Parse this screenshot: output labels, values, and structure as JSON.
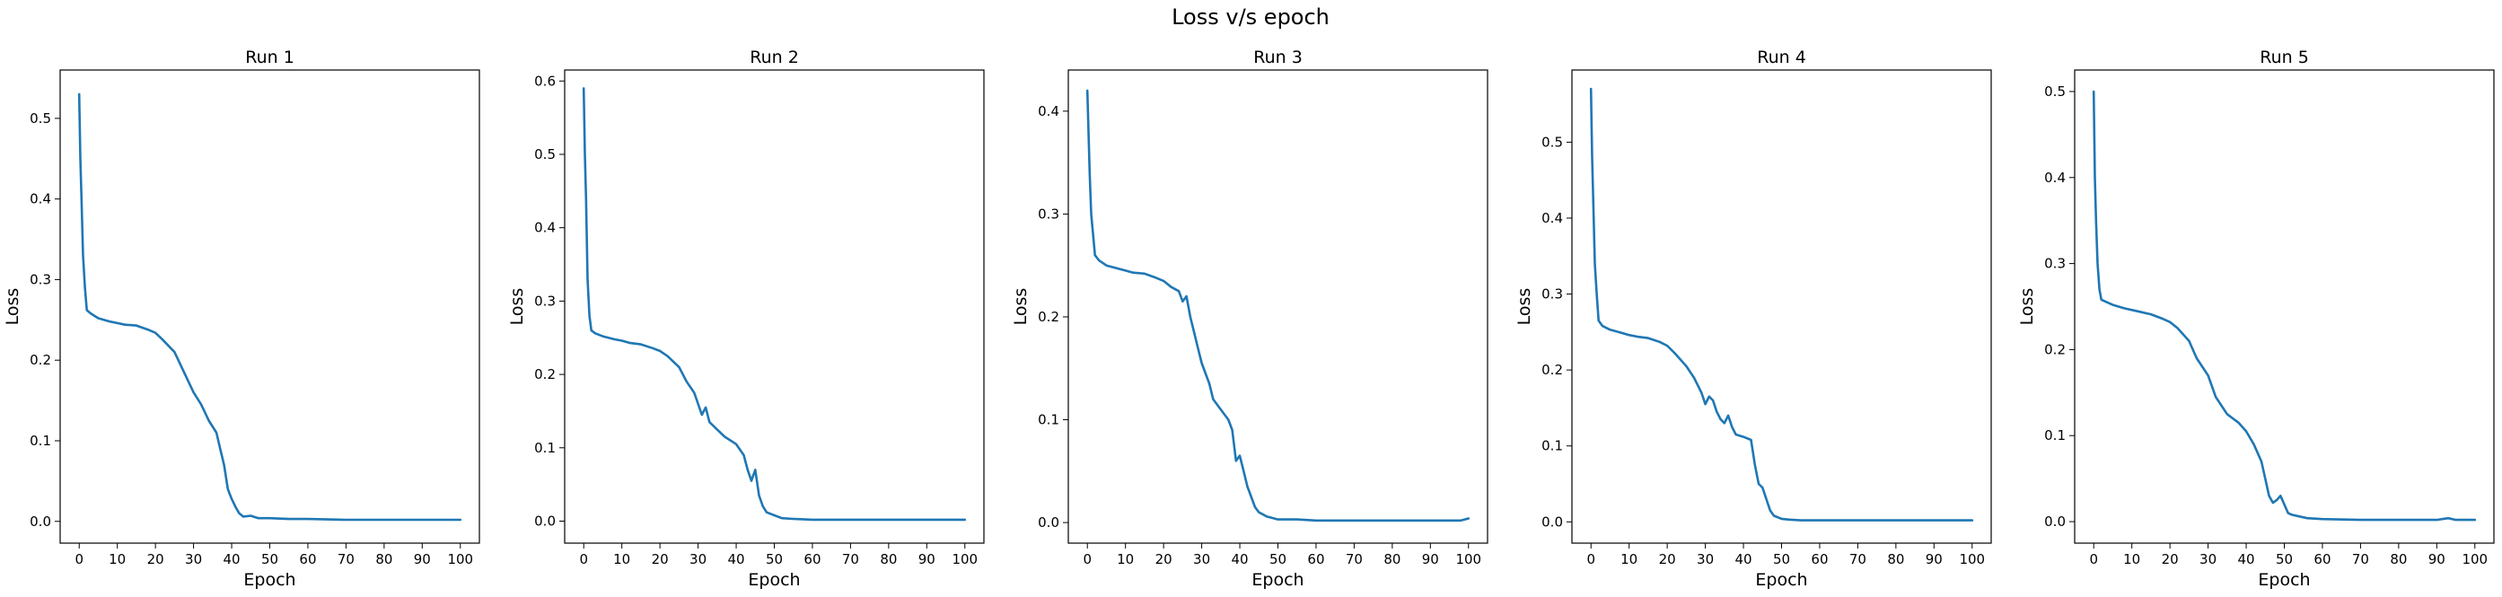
{
  "figure": {
    "title": "Loss v/s epoch",
    "line_color": "#1f77b4"
  },
  "chart_data": [
    {
      "type": "line",
      "title": "Run 1",
      "xlabel": "Epoch",
      "ylabel": "Loss",
      "xticks": [
        0,
        10,
        20,
        30,
        40,
        50,
        60,
        70,
        80,
        90,
        100
      ],
      "yticks": [
        0.0,
        0.1,
        0.2,
        0.3,
        0.4,
        0.5
      ],
      "ytick_labels": [
        "0.0",
        "0.1",
        "0.2",
        "0.3",
        "0.4",
        "0.5"
      ],
      "xlim": [
        -5,
        105
      ],
      "ylim": [
        -0.027,
        0.56
      ],
      "series": [
        {
          "x": [
            0,
            0.3,
            0.6,
            1,
            1.5,
            2,
            3,
            5,
            8,
            10,
            12,
            15,
            18,
            20,
            22,
            25,
            27,
            30,
            32,
            34,
            36,
            37,
            38,
            39,
            40,
            41,
            42,
            43,
            45,
            47,
            50,
            55,
            60,
            70,
            80,
            90,
            100
          ],
          "y": [
            0.53,
            0.45,
            0.4,
            0.33,
            0.29,
            0.262,
            0.258,
            0.252,
            0.248,
            0.246,
            0.244,
            0.243,
            0.238,
            0.234,
            0.225,
            0.21,
            0.19,
            0.16,
            0.145,
            0.125,
            0.11,
            0.09,
            0.07,
            0.04,
            0.028,
            0.018,
            0.01,
            0.006,
            0.007,
            0.004,
            0.004,
            0.003,
            0.003,
            0.002,
            0.002,
            0.002,
            0.002
          ]
        }
      ]
    },
    {
      "type": "line",
      "title": "Run 2",
      "xlabel": "Epoch",
      "ylabel": "Loss",
      "xticks": [
        0,
        10,
        20,
        30,
        40,
        50,
        60,
        70,
        80,
        90,
        100
      ],
      "yticks": [
        0.0,
        0.1,
        0.2,
        0.3,
        0.4,
        0.5,
        0.6
      ],
      "ytick_labels": [
        "0.0",
        "0.1",
        "0.2",
        "0.3",
        "0.4",
        "0.5",
        "0.6"
      ],
      "xlim": [
        -5,
        105
      ],
      "ylim": [
        -0.03,
        0.615
      ],
      "series": [
        {
          "x": [
            0,
            0.3,
            0.6,
            1,
            1.5,
            2,
            3,
            5,
            8,
            10,
            12,
            15,
            18,
            20,
            22,
            25,
            27,
            29,
            31,
            32,
            33,
            35,
            37,
            40,
            42,
            43,
            44,
            45,
            46,
            47,
            48,
            50,
            52,
            55,
            60,
            70,
            80,
            90,
            100
          ],
          "y": [
            0.59,
            0.5,
            0.44,
            0.33,
            0.28,
            0.26,
            0.256,
            0.252,
            0.248,
            0.246,
            0.243,
            0.241,
            0.236,
            0.232,
            0.225,
            0.21,
            0.19,
            0.175,
            0.145,
            0.155,
            0.135,
            0.125,
            0.115,
            0.105,
            0.09,
            0.07,
            0.055,
            0.07,
            0.035,
            0.02,
            0.012,
            0.008,
            0.004,
            0.003,
            0.002,
            0.002,
            0.002,
            0.002,
            0.002
          ]
        }
      ]
    },
    {
      "type": "line",
      "title": "Run 3",
      "xlabel": "Epoch",
      "ylabel": "Loss",
      "xticks": [
        0,
        10,
        20,
        30,
        40,
        50,
        60,
        70,
        80,
        90,
        100
      ],
      "yticks": [
        0.0,
        0.1,
        0.2,
        0.3,
        0.4
      ],
      "ytick_labels": [
        "0.0",
        "0.1",
        "0.2",
        "0.3",
        "0.4"
      ],
      "xlim": [
        -5,
        105
      ],
      "ylim": [
        -0.02,
        0.44
      ],
      "series": [
        {
          "x": [
            0,
            0.3,
            0.6,
            1,
            1.5,
            2,
            3,
            5,
            8,
            10,
            12,
            15,
            18,
            20,
            22,
            24,
            25,
            26,
            27,
            28,
            29,
            30,
            32,
            33,
            35,
            37,
            38,
            39,
            40,
            41,
            42,
            44,
            45,
            47,
            50,
            55,
            60,
            70,
            80,
            90,
            98,
            100
          ],
          "y": [
            0.42,
            0.38,
            0.34,
            0.3,
            0.28,
            0.26,
            0.255,
            0.25,
            0.247,
            0.245,
            0.243,
            0.242,
            0.238,
            0.235,
            0.229,
            0.225,
            0.215,
            0.22,
            0.2,
            0.185,
            0.17,
            0.155,
            0.135,
            0.12,
            0.11,
            0.1,
            0.09,
            0.06,
            0.065,
            0.05,
            0.035,
            0.015,
            0.01,
            0.006,
            0.003,
            0.003,
            0.002,
            0.002,
            0.002,
            0.002,
            0.002,
            0.004
          ]
        }
      ]
    },
    {
      "type": "line",
      "title": "Run 4",
      "xlabel": "Epoch",
      "ylabel": "Loss",
      "xticks": [
        0,
        10,
        20,
        30,
        40,
        50,
        60,
        70,
        80,
        90,
        100
      ],
      "yticks": [
        0.0,
        0.1,
        0.2,
        0.3,
        0.4,
        0.5
      ],
      "ytick_labels": [
        "0.0",
        "0.1",
        "0.2",
        "0.3",
        "0.4",
        "0.5"
      ],
      "xlim": [
        -5,
        105
      ],
      "ylim": [
        -0.028,
        0.595
      ],
      "series": [
        {
          "x": [
            0,
            0.3,
            0.6,
            1,
            1.5,
            2,
            3,
            5,
            8,
            10,
            12,
            15,
            18,
            20,
            22,
            25,
            27,
            29,
            30,
            31,
            32,
            33,
            34,
            35,
            36,
            37,
            38,
            40,
            42,
            43,
            44,
            45,
            46,
            47,
            48,
            50,
            52,
            55,
            60,
            70,
            80,
            90,
            100
          ],
          "y": [
            0.57,
            0.48,
            0.42,
            0.34,
            0.3,
            0.265,
            0.258,
            0.253,
            0.249,
            0.246,
            0.244,
            0.242,
            0.237,
            0.232,
            0.222,
            0.205,
            0.19,
            0.17,
            0.155,
            0.165,
            0.16,
            0.145,
            0.135,
            0.13,
            0.14,
            0.125,
            0.115,
            0.112,
            0.108,
            0.075,
            0.05,
            0.045,
            0.03,
            0.015,
            0.008,
            0.004,
            0.003,
            0.002,
            0.002,
            0.002,
            0.002,
            0.002,
            0.002
          ]
        }
      ]
    },
    {
      "type": "line",
      "title": "Run 5",
      "xlabel": "Epoch",
      "ylabel": "Loss",
      "xticks": [
        0,
        10,
        20,
        30,
        40,
        50,
        60,
        70,
        80,
        90,
        100
      ],
      "yticks": [
        0.0,
        0.1,
        0.2,
        0.3,
        0.4,
        0.5
      ],
      "ytick_labels": [
        "0.0",
        "0.1",
        "0.2",
        "0.3",
        "0.4",
        "0.5"
      ],
      "xlim": [
        -5,
        105
      ],
      "ylim": [
        -0.025,
        0.525
      ],
      "series": [
        {
          "x": [
            0,
            0.3,
            0.6,
            1,
            1.5,
            2,
            3,
            5,
            8,
            10,
            12,
            15,
            18,
            20,
            22,
            25,
            27,
            30,
            32,
            35,
            38,
            40,
            42,
            44,
            45,
            46,
            47,
            48,
            49,
            50,
            51,
            52,
            54,
            56,
            60,
            70,
            80,
            90,
            93,
            95,
            100
          ],
          "y": [
            0.5,
            0.4,
            0.35,
            0.3,
            0.27,
            0.258,
            0.256,
            0.252,
            0.248,
            0.246,
            0.244,
            0.241,
            0.236,
            0.232,
            0.225,
            0.21,
            0.19,
            0.17,
            0.145,
            0.125,
            0.115,
            0.105,
            0.09,
            0.07,
            0.05,
            0.03,
            0.022,
            0.025,
            0.03,
            0.02,
            0.01,
            0.008,
            0.006,
            0.004,
            0.003,
            0.002,
            0.002,
            0.002,
            0.004,
            0.002,
            0.002
          ]
        }
      ]
    }
  ]
}
